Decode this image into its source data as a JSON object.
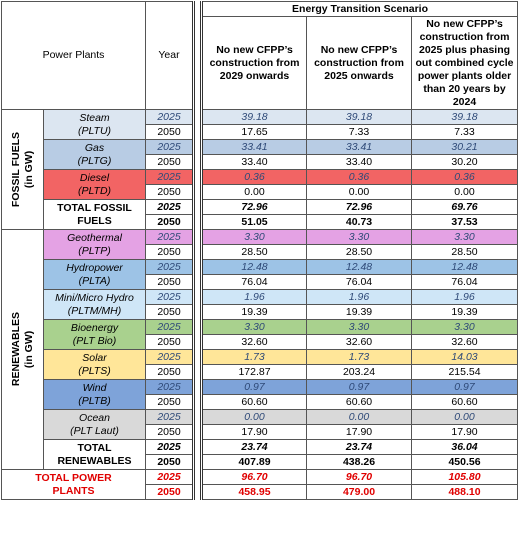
{
  "header": {
    "plant_column": "Power Plants",
    "year_column": "Year",
    "scenario_title": "Energy Transition Scenario",
    "scenarios": [
      "No new CFPP’s construction from 2029 onwards",
      "No new CFPP’s construction from 2025 onwards",
      "No new CFPP’s construction from 2025 plus phasing out combined cycle power plants older than 20 years by 2024"
    ]
  },
  "sections": [
    {
      "label": "FOSSIL FUELS",
      "unit": "(in GW)",
      "plants": [
        {
          "name": "Steam",
          "code": "(PLTU)",
          "rows": [
            {
              "year": "2025",
              "values": [
                "39.18",
                "39.18",
                "39.18"
              ]
            },
            {
              "year": "2050",
              "values": [
                "17.65",
                "7.33",
                "7.33"
              ]
            }
          ]
        },
        {
          "name": "Gas",
          "code": "(PLTG)",
          "rows": [
            {
              "year": "2025",
              "values": [
                "33.41",
                "33.41",
                "30.21"
              ]
            },
            {
              "year": "2050",
              "values": [
                "33.40",
                "33.40",
                "30.20"
              ]
            }
          ]
        },
        {
          "name": "Diesel",
          "code": "(PLTD)",
          "rows": [
            {
              "year": "2025",
              "values": [
                "0.36",
                "0.36",
                "0.36"
              ]
            },
            {
              "year": "2050",
              "values": [
                "0.00",
                "0.00",
                "0.00"
              ]
            }
          ]
        }
      ],
      "total": {
        "name": "TOTAL FOSSIL FUELS",
        "rows": [
          {
            "year": "2025",
            "values": [
              "72.96",
              "72.96",
              "69.76"
            ]
          },
          {
            "year": "2050",
            "values": [
              "51.05",
              "40.73",
              "37.53"
            ]
          }
        ]
      }
    },
    {
      "label": "RENEWABLES",
      "unit": "(in GW)",
      "plants": [
        {
          "name": "Geothermal",
          "code": "(PLTP)",
          "rows": [
            {
              "year": "2025",
              "values": [
                "3.30",
                "3.30",
                "3.30"
              ]
            },
            {
              "year": "2050",
              "values": [
                "28.50",
                "28.50",
                "28.50"
              ]
            }
          ]
        },
        {
          "name": "Hydropower",
          "code": "(PLTA)",
          "rows": [
            {
              "year": "2025",
              "values": [
                "12.48",
                "12.48",
                "12.48"
              ]
            },
            {
              "year": "2050",
              "values": [
                "76.04",
                "76.04",
                "76.04"
              ]
            }
          ]
        },
        {
          "name": "Mini/Micro Hydro",
          "code": "(PLTM/MH)",
          "rows": [
            {
              "year": "2025",
              "values": [
                "1.96",
                "1.96",
                "1.96"
              ]
            },
            {
              "year": "2050",
              "values": [
                "19.39",
                "19.39",
                "19.39"
              ]
            }
          ]
        },
        {
          "name": "Bioenergy",
          "code": "(PLT Bio)",
          "rows": [
            {
              "year": "2025",
              "values": [
                "3.30",
                "3.30",
                "3.30"
              ]
            },
            {
              "year": "2050",
              "values": [
                "32.60",
                "32.60",
                "32.60"
              ]
            }
          ]
        },
        {
          "name": "Solar",
          "code": "(PLTS)",
          "rows": [
            {
              "year": "2025",
              "values": [
                "1.73",
                "1.73",
                "14.03"
              ]
            },
            {
              "year": "2050",
              "values": [
                "172.87",
                "203.24",
                "215.54"
              ]
            }
          ]
        },
        {
          "name": "Wind",
          "code": "(PLTB)",
          "rows": [
            {
              "year": "2025",
              "values": [
                "0.97",
                "0.97",
                "0.97"
              ]
            },
            {
              "year": "2050",
              "values": [
                "60.60",
                "60.60",
                "60.60"
              ]
            }
          ]
        },
        {
          "name": "Ocean",
          "code": "(PLT Laut)",
          "rows": [
            {
              "year": "2025",
              "values": [
                "0.00",
                "0.00",
                "0.00"
              ]
            },
            {
              "year": "2050",
              "values": [
                "17.90",
                "17.90",
                "17.90"
              ]
            }
          ]
        }
      ],
      "total": {
        "name": "TOTAL RENEWABLES",
        "rows": [
          {
            "year": "2025",
            "values": [
              "23.74",
              "23.74",
              "36.04"
            ]
          },
          {
            "year": "2050",
            "values": [
              "407.89",
              "438.26",
              "450.56"
            ]
          }
        ]
      }
    }
  ],
  "grand_total": {
    "name": "TOTAL POWER PLANTS",
    "rows": [
      {
        "year": "2025",
        "values": [
          "96.70",
          "96.70",
          "105.80"
        ]
      },
      {
        "year": "2050",
        "values": [
          "458.95",
          "479.00",
          "488.10"
        ]
      }
    ]
  }
}
